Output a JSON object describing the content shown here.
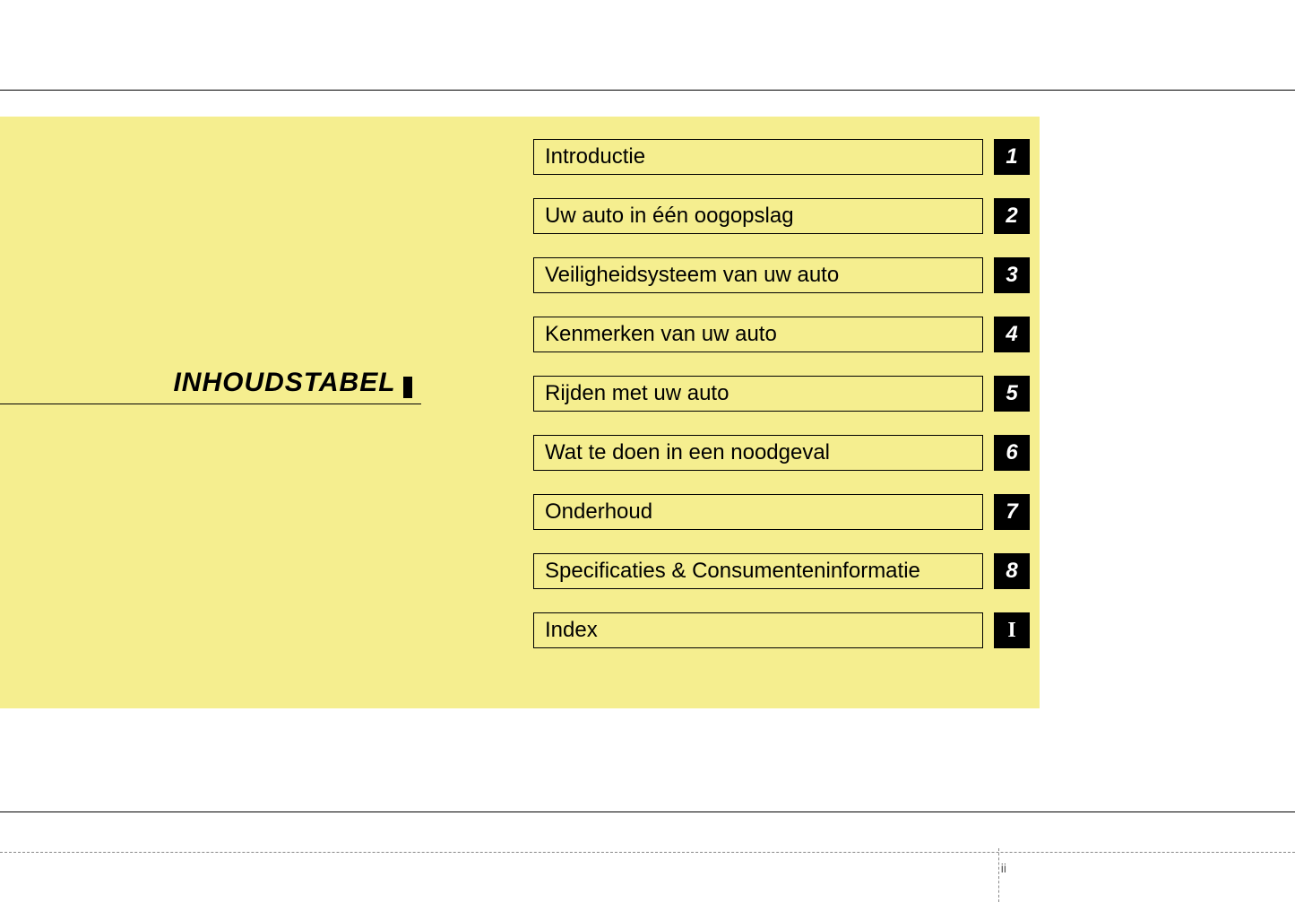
{
  "page": {
    "title": "INHOUDSTABEL",
    "pageNumber": "ii",
    "background_color": "#ffffff",
    "panel_color": "#f5ee8f",
    "box_border_color": "#000000",
    "number_box_bg": "#000000",
    "number_box_fg": "#ffffff"
  },
  "toc": {
    "items": [
      {
        "label": "Introductie",
        "number": "1"
      },
      {
        "label": "Uw auto in één oogopslag",
        "number": "2"
      },
      {
        "label": "Veiligheidsysteem van uw auto",
        "number": "3"
      },
      {
        "label": "Kenmerken van uw auto",
        "number": "4"
      },
      {
        "label": "Rijden met uw auto",
        "number": "5"
      },
      {
        "label": "Wat te doen in een noodgeval",
        "number": "6"
      },
      {
        "label": "Onderhoud",
        "number": "7"
      },
      {
        "label": "Specificaties & Consumenteninformatie",
        "number": "8"
      },
      {
        "label": "Index",
        "number": "I"
      }
    ]
  }
}
